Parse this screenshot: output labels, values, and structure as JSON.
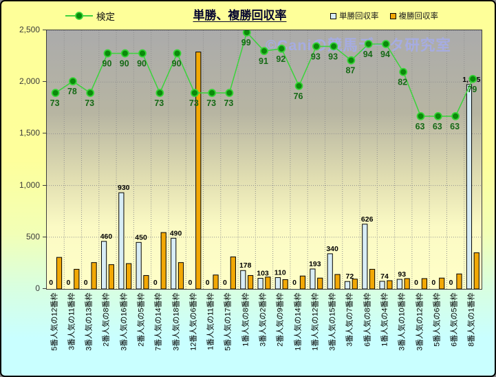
{
  "title": "単勝、複勝回収率",
  "watermark": "©Caniの競馬データ研究室",
  "legend": {
    "line": "検定",
    "bar1": "単勝回収率",
    "bar2": "複勝回収率"
  },
  "colors": {
    "page_top": "#feff99",
    "page_bottom": "#c9ffff",
    "plot_top": "#ababab",
    "plot_bottom": "#ffffc8",
    "bar_tansho_fill": "#d8edf6",
    "bar_fukusho_fill": "#f2a805",
    "bar_border": "#000000",
    "line_green": "#3fd23f",
    "dot_fill": "#0b8a0b",
    "dot_stroke": "#35d435",
    "green_label": "#156915",
    "watermark": "#a6ace4",
    "title": "#05052e"
  },
  "chart_data": {
    "type": "bar",
    "title": "単勝、複勝回収率",
    "categories": [
      "5番人気の12番枠",
      "3番人気の11番枠",
      "3番人気の13番枠",
      "2番人気の8番枠",
      "3番人気の16番枠",
      "2番人気の5番枠",
      "7番人気の14番枠",
      "3番人気の18番枠",
      "12番人気の6番枠",
      "1番人気の11番枠",
      "5番人気の17番枠",
      "1番人気の8番枠",
      "3番人気の2番枠",
      "2番人気の9番枠",
      "1番人気の14番枠",
      "1番人気の12番枠",
      "3番人気の15番枠",
      "3番人気の7番枠",
      "6番人気の8番枠",
      "1番人気の4番枠",
      "3番人気の10番枠",
      "3番人気の12番枠",
      "5番人気の6番枠",
      "6番人気の5番枠",
      "8番人気の1番枠"
    ],
    "series": [
      {
        "name": "単勝回収率",
        "type": "bar",
        "values": [
          0,
          0,
          0,
          460,
          930,
          450,
          0,
          490,
          0,
          0,
          0,
          178,
          103,
          110,
          0,
          193,
          340,
          72,
          626,
          74,
          93,
          0,
          0,
          0,
          1975
        ],
        "labels": [
          "0",
          "0",
          "0",
          "460",
          "930",
          "450",
          "0",
          "490",
          "0",
          "0",
          "0",
          "178",
          "103",
          "110",
          "0",
          "193",
          "340",
          "72",
          "626",
          "74",
          "93",
          "0",
          "0",
          "0",
          "1,975"
        ]
      },
      {
        "name": "複勝回収率",
        "type": "bar",
        "values": [
          305,
          190,
          255,
          235,
          245,
          130,
          545,
          255,
          2290,
          135,
          310,
          130,
          115,
          90,
          125,
          105,
          140,
          95,
          190,
          80,
          100,
          100,
          105,
          145,
          350
        ],
        "labels": []
      },
      {
        "name": "検定",
        "type": "line",
        "values": [
          73,
          78,
          73,
          90,
          90,
          90,
          73,
          90,
          73,
          73,
          73,
          99,
          91,
          92,
          76,
          93,
          93,
          87,
          94,
          94,
          82,
          63,
          63,
          63,
          79
        ],
        "labels": [
          "73",
          "78",
          "73",
          "90",
          "90",
          "90",
          "73",
          "90",
          "73",
          "73",
          "73",
          "99",
          "91",
          "92",
          "76",
          "93",
          "93",
          "87",
          "94",
          "94",
          "82",
          "63",
          "63",
          "63",
          "79"
        ]
      }
    ],
    "y_axis": {
      "min": 0,
      "max": 2500,
      "step": 500,
      "tick_labels": [
        "0",
        "500",
        "1,000",
        "1,500",
        "2,000",
        "2,500"
      ]
    },
    "line_axis": {
      "hidden": true,
      "slope": 22.5,
      "offset": 252
    },
    "grid": "dotted",
    "legend_position": "top"
  }
}
